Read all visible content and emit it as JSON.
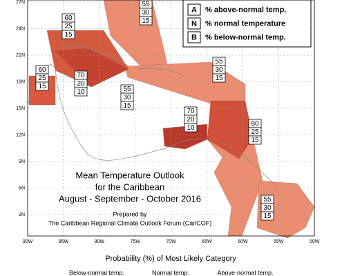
{
  "map": {
    "lat_labels": [
      "27N",
      "24N",
      "21N",
      "18N",
      "15N",
      "12N",
      "9N",
      "6N",
      "3N"
    ],
    "lon_labels": [
      "90W",
      "85W",
      "80W",
      "75W",
      "70W",
      "65W",
      "60W",
      "55W",
      "50W"
    ],
    "legend": [
      {
        "key": "A",
        "text": "% above-normal temp."
      },
      {
        "key": "N",
        "text": "% normal temperature"
      },
      {
        "key": "B",
        "text": "% below-normal temp."
      }
    ],
    "outlooks": [
      [
        55,
        30,
        15
      ],
      [
        60,
        25,
        15
      ],
      [
        60,
        25,
        15
      ],
      [
        70,
        20,
        10
      ],
      [
        55,
        30,
        15
      ],
      [
        55,
        30,
        15
      ],
      [
        70,
        20,
        10
      ],
      [
        60,
        25,
        15
      ],
      [
        55,
        30,
        15
      ]
    ],
    "title": [
      "Mean Temperature Outlook",
      "for the Caribbean",
      "August - September - October 2016"
    ],
    "credit": [
      "Prepared by",
      "The Caribbean Regional Climate Outlook Forum (CariCOF)"
    ]
  },
  "colorbar": {
    "title": "Probability (%) of Most Likely Category",
    "labels": [
      "Below-normal temp.",
      "Normal temp.",
      "Above-normal temp."
    ]
  }
}
